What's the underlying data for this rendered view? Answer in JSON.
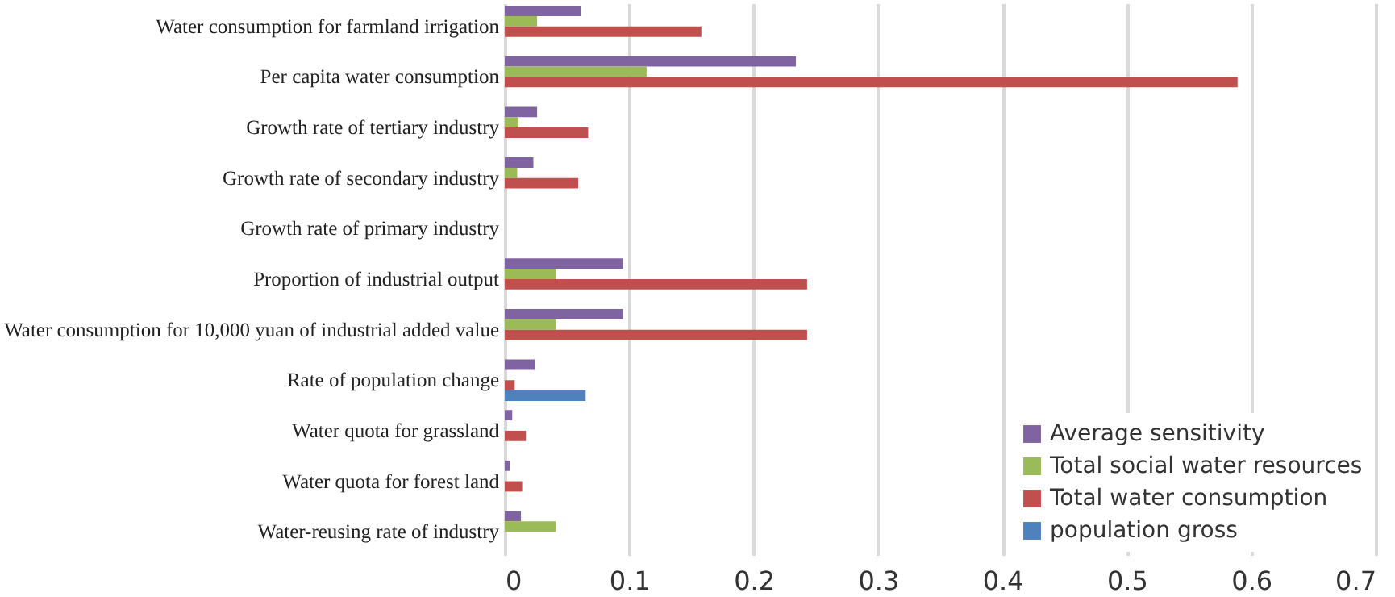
{
  "chart_data": {
    "type": "bar",
    "orientation": "horizontal",
    "categories": [
      "Water consumption for farmland irrigation",
      "Per capita water consumption",
      "Growth rate of tertiary industry",
      "Growth rate of secondary industry",
      "Growth rate of primary industry",
      "Proportion of industrial output",
      "Water consumption for 10,000 yuan of industrial added value",
      "Rate of population change",
      "Water quota for grassland",
      "Water quota for forest land",
      "Water-reusing rate of industry"
    ],
    "series": [
      {
        "name": "Average sensitivity",
        "color": "#8064a2",
        "values": [
          0.061,
          0.234,
          0.026,
          0.023,
          null,
          0.095,
          0.095,
          0.024,
          0.006,
          0.004,
          0.013
        ]
      },
      {
        "name": "Total social water resources",
        "color": "#9bbb59",
        "values": [
          0.026,
          0.114,
          0.011,
          0.01,
          null,
          0.041,
          0.041,
          null,
          null,
          null,
          0.041
        ]
      },
      {
        "name": "Total water consumption",
        "color": "#c0504d",
        "values": [
          0.158,
          0.589,
          0.067,
          0.059,
          null,
          0.243,
          0.243,
          0.008,
          0.017,
          0.014,
          null
        ]
      },
      {
        "name": "population gross",
        "color": "#4f81bd",
        "values": [
          null,
          null,
          null,
          null,
          null,
          null,
          null,
          0.065,
          null,
          null,
          null
        ]
      }
    ],
    "xlim": [
      0,
      0.7
    ],
    "xticks": [
      0,
      0.1,
      0.2,
      0.3,
      0.4,
      0.5,
      0.6,
      0.7
    ],
    "grid": "x",
    "legend": "bottom right"
  }
}
